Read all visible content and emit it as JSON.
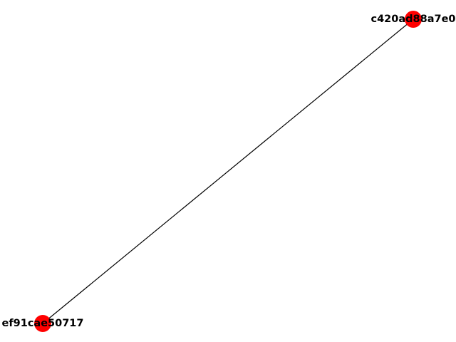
{
  "graph": {
    "nodes": [
      {
        "id": "n1",
        "label": "c420ad88a7e0"
      },
      {
        "id": "n2",
        "label": "ef91cae50717"
      }
    ],
    "edges": [
      {
        "source": "n1",
        "target": "n2"
      }
    ]
  },
  "colors": {
    "node_fill": "#ff0000",
    "edge_stroke": "#000000",
    "label_text": "#000000",
    "background": "#ffffff"
  }
}
